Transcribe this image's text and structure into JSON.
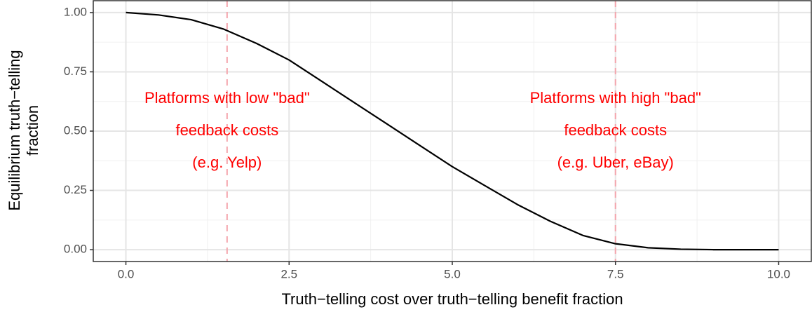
{
  "chart_data": {
    "type": "line",
    "xlabel": "Truth−telling cost over truth−telling benefit fraction",
    "ylabel": [
      "Equilibrium truth−telling",
      "fraction"
    ],
    "x": [
      0,
      0.5,
      1,
      1.5,
      2,
      2.5,
      3,
      3.5,
      4,
      4.5,
      5,
      5.5,
      6,
      6.5,
      7,
      7.5,
      8,
      8.5,
      9,
      9.5,
      10
    ],
    "series": [
      {
        "color": "#000000",
        "values": [
          1.0,
          0.99,
          0.97,
          0.93,
          0.87,
          0.8,
          0.71,
          0.62,
          0.53,
          0.44,
          0.35,
          0.27,
          0.19,
          0.12,
          0.06,
          0.025,
          0.008,
          0.002,
          0,
          0,
          0
        ]
      }
    ],
    "vlines": [
      1.55,
      7.5
    ],
    "vline_color": "#f4a6ad",
    "annotations": [
      {
        "lines": [
          "Platforms with low \"bad\"",
          "feedback costs",
          "(e.g. Yelp)"
        ]
      },
      {
        "lines": [
          "Platforms with high \"bad\"",
          "feedback costs",
          "(e.g. Uber, eBay)"
        ]
      }
    ],
    "annotation_color": "#ff0000",
    "xlim": [
      -0.5,
      10.5
    ],
    "ylim": [
      -0.05,
      1.05
    ],
    "xticks": [
      {
        "value": 0,
        "label": "0.0"
      },
      2.5,
      {
        "value": 5,
        "label": "5.0"
      },
      7.5,
      {
        "value": 10,
        "label": "10.0"
      }
    ],
    "yticks": [
      {
        "value": 0,
        "label": "0.00"
      },
      {
        "value": 0.25,
        "label": "0.25"
      },
      {
        "value": 0.5,
        "label": "0.50"
      },
      {
        "value": 0.75,
        "label": "0.75"
      },
      {
        "value": 1,
        "label": "1.00"
      }
    ],
    "grid": true
  }
}
